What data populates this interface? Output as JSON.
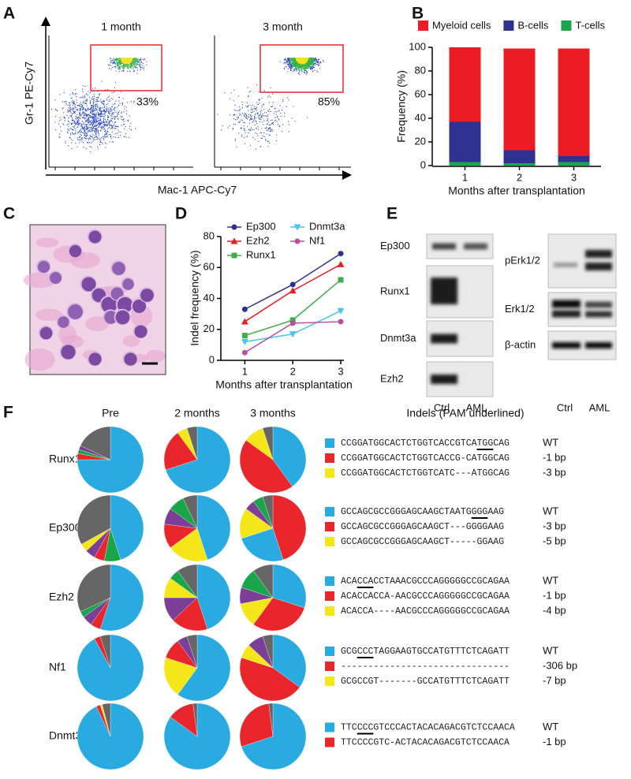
{
  "panel_letters": [
    "A",
    "B",
    "C",
    "D",
    "E",
    "F"
  ],
  "flow": {
    "plots": [
      {
        "title": "1 month",
        "gate_label": "33%"
      },
      {
        "title": "3 month",
        "gate_label": "85%"
      }
    ],
    "ylabel": "Gr-1 PE-Cy7",
    "xlabel": "Mac-1 APC-Cy7"
  },
  "blot": {
    "left_bands": [
      "Ep300",
      "Runx1",
      "Dnmt3a",
      "Ezh2"
    ],
    "right_bands": [
      "pErk1/2",
      "Erk1/2",
      "β-actin"
    ],
    "lanes": [
      "Ctrl",
      "AML"
    ]
  },
  "chart_data": [
    {
      "type": "bar",
      "stacked": true,
      "legend": "top",
      "categories": [
        "1",
        "2",
        "3"
      ],
      "series": [
        {
          "name": "Myeloid cells",
          "color": "#ec1c24",
          "values": [
            63,
            86,
            91
          ]
        },
        {
          "name": "B-cells",
          "color": "#2e3192",
          "values": [
            34,
            11,
            5
          ]
        },
        {
          "name": "T-cells",
          "color": "#1aa64a",
          "values": [
            3,
            2,
            3
          ]
        }
      ],
      "ylim": [
        0,
        100
      ],
      "yticks": [
        0,
        20,
        40,
        60,
        80,
        100
      ],
      "ylabel": "Frequency (%)",
      "xlabel": "Months after transplantation"
    },
    {
      "type": "line",
      "legend": "top",
      "x": [
        1,
        2,
        3
      ],
      "xlim": [
        0.5,
        3
      ],
      "xticks": [
        1,
        2,
        3
      ],
      "series": [
        {
          "name": "Ep300",
          "color": "#2e3192",
          "marker": "circle",
          "values": [
            33,
            49,
            69
          ]
        },
        {
          "name": "Ezh2",
          "color": "#ec1c24",
          "marker": "triangle",
          "values": [
            25,
            45,
            62
          ]
        },
        {
          "name": "Runx1",
          "color": "#3fae49",
          "marker": "square",
          "values": [
            16,
            26,
            52
          ]
        },
        {
          "name": "Dnmt3a",
          "color": "#4fc3e8",
          "marker": "triangle-down",
          "values": [
            12,
            17,
            32
          ]
        },
        {
          "name": "Nf1",
          "color": "#b5529c",
          "marker": "circle",
          "values": [
            5,
            24,
            25
          ]
        }
      ],
      "ylim": [
        0,
        80
      ],
      "yticks": [
        0,
        20,
        40,
        60,
        80
      ],
      "ylabel": "Indel frequency (%)",
      "xlabel": "Months after transplantation"
    },
    {
      "type": "pie",
      "column_titles": [
        "Pre",
        "2 months",
        "3 months"
      ],
      "rows": [
        {
          "name": "Runx1",
          "pies": [
            {
              "values": [
                75,
                3,
                2,
                2,
                18
              ],
              "colors": [
                "#29abe2",
                "#e8262b",
                "#1aa54a",
                "#7b3f98",
                "#666"
              ]
            },
            {
              "values": [
                70,
                20,
                5,
                5
              ],
              "colors": [
                "#29abe2",
                "#e8262b",
                "#f5e61a",
                "#666"
              ]
            },
            {
              "values": [
                40,
                45,
                10,
                5
              ],
              "colors": [
                "#29abe2",
                "#e8262b",
                "#f5e61a",
                "#666"
              ]
            }
          ]
        },
        {
          "name": "Ep300",
          "pies": [
            {
              "values": [
                45,
                8,
                5,
                5,
                4,
                33
              ],
              "colors": [
                "#29abe2",
                "#1aa54a",
                "#e8262b",
                "#7b3f98",
                "#f5e61a",
                "#666"
              ]
            },
            {
              "values": [
                45,
                20,
                12,
                8,
                8,
                7
              ],
              "colors": [
                "#29abe2",
                "#f5e61a",
                "#e8262b",
                "#7b3f98",
                "#1aa54a",
                "#666"
              ]
            },
            {
              "values": [
                45,
                25,
                15,
                5,
                5,
                5
              ],
              "colors": [
                "#e8262b",
                "#29abe2",
                "#f5e61a",
                "#7b3f98",
                "#1aa54a",
                "#666"
              ]
            }
          ]
        },
        {
          "name": "Ezh2",
          "pies": [
            {
              "values": [
                55,
                5,
                5,
                3,
                32
              ],
              "colors": [
                "#29abe2",
                "#e8262b",
                "#7b3f98",
                "#1aa54a",
                "#666"
              ]
            },
            {
              "values": [
                45,
                18,
                12,
                10,
                5,
                10
              ],
              "colors": [
                "#29abe2",
                "#e8262b",
                "#7b3f98",
                "#f5e61a",
                "#1aa54a",
                "#666"
              ]
            },
            {
              "values": [
                30,
                30,
                12,
                8,
                10,
                10
              ],
              "colors": [
                "#29abe2",
                "#e8262b",
                "#f5e61a",
                "#7b3f98",
                "#1aa54a",
                "#666"
              ]
            }
          ]
        },
        {
          "name": "Nf1",
          "pies": [
            {
              "values": [
                92,
                3,
                5
              ],
              "colors": [
                "#29abe2",
                "#e8262b",
                "#666"
              ]
            },
            {
              "values": [
                60,
                20,
                10,
                5,
                5
              ],
              "colors": [
                "#29abe2",
                "#f5e61a",
                "#e8262b",
                "#7b3f98",
                "#666"
              ]
            },
            {
              "values": [
                35,
                45,
                7,
                8,
                5
              ],
              "colors": [
                "#29abe2",
                "#e8262b",
                "#f5e61a",
                "#7b3f98",
                "#666"
              ]
            }
          ]
        },
        {
          "name": "Dnmt3a",
          "pies": [
            {
              "values": [
                93,
                2,
                1,
                4
              ],
              "colors": [
                "#29abe2",
                "#e8262b",
                "#f5e61a",
                "#666"
              ]
            },
            {
              "values": [
                85,
                13,
                2
              ],
              "colors": [
                "#29abe2",
                "#e8262b",
                "#666"
              ]
            },
            {
              "values": [
                70,
                28,
                2
              ],
              "colors": [
                "#29abe2",
                "#e8262b",
                "#666"
              ]
            }
          ]
        }
      ]
    }
  ],
  "indels": {
    "title": "Indels (PAM underlined)",
    "groups": [
      [
        {
          "color": "#29abe2",
          "seq": "CCGGATGGCACTCTGGTCACCGTCATGGCAG",
          "label": "WT"
        },
        {
          "color": "#e8262b",
          "seq": "CCGGATGGCACTCTGGTCACCG-CATGGCAG",
          "label": "-1 bp"
        },
        {
          "color": "#f5e61a",
          "seq": "CCGGATGGCACTCTGGTCATC---ATGGCAG",
          "label": "-3 bp"
        }
      ],
      [
        {
          "color": "#29abe2",
          "seq": "GCCAGCGCCGGGAGCAAGCTAATGGGGAAG",
          "label": "WT"
        },
        {
          "color": "#e8262b",
          "seq": "GCCAGCGCCGGGAGCAAGCT---GGGGAAG",
          "label": "-3 bp"
        },
        {
          "color": "#f5e61a",
          "seq": "GCCAGCGCCGGGAGCAAGCT-----GGAAG",
          "label": "-5 bp"
        }
      ],
      [
        {
          "color": "#29abe2",
          "seq": "ACACCACCTAAACGCCCAGGGGGCCGCAGAA",
          "label": "WT"
        },
        {
          "color": "#e8262b",
          "seq": "ACACCACCA-AACGCCCAGGGGGCCGCAGAA",
          "label": "-1 bp"
        },
        {
          "color": "#f5e61a",
          "seq": "ACACCA----AACGCCCAGGGGGCCGCAGAA",
          "label": "-4 bp"
        }
      ],
      [
        {
          "color": "#29abe2",
          "seq": "GCGCCCTAGGAAGTGCCATGTTTCTCAGATT",
          "label": "WT"
        },
        {
          "color": "#e8262b",
          "seq": "-------------------------------",
          "label": "-306 bp"
        },
        {
          "color": "#f5e61a",
          "seq": "GCGCCGT-------GCCATGTTTCTCAGATT",
          "label": "-7 bp"
        }
      ],
      [
        {
          "color": "#29abe2",
          "seq": "TTCCCCGTCCCACTACACAGACGTCTCCAACA",
          "label": "WT"
        },
        {
          "color": "#e8262b",
          "seq": "TTCCCCGTC-ACTACACAGACGTCTCCAACA",
          "label": "-1 bp"
        }
      ]
    ]
  }
}
